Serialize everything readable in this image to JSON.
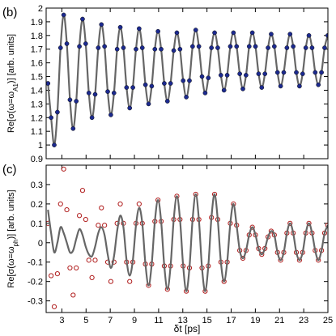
{
  "chart_data": [
    {
      "type": "scatter-line",
      "panel_label": "(b)",
      "ylabel": [
        "Re[σ(ω=ω",
        "A1",
        ")] [arb. units]"
      ],
      "xlim": [
        1.7,
        25
      ],
      "xticks": [
        3,
        5,
        7,
        9,
        11,
        13,
        15,
        17,
        19,
        21,
        23,
        25
      ],
      "show_xtick_labels": false,
      "ylim": [
        0.9,
        2
      ],
      "yticks": [
        0.9,
        1,
        1.1,
        1.2,
        1.3,
        1.4,
        1.5,
        1.6,
        1.7,
        1.8,
        1.9,
        2
      ],
      "series": [
        {
          "marker": "filled",
          "color": "#1c2a8f",
          "line_color": "#666666",
          "x": [
            1.85,
            2.11,
            2.37,
            2.63,
            2.89,
            3.15,
            3.41,
            3.67,
            3.93,
            4.19,
            4.45,
            4.71,
            4.97,
            5.23,
            5.49,
            5.75,
            6.01,
            6.27,
            6.53,
            6.79,
            7.05,
            7.31,
            7.57,
            7.83,
            8.09,
            8.35,
            8.61,
            8.87,
            9.13,
            9.39,
            9.65,
            9.91,
            10.17,
            10.43,
            10.69,
            10.95,
            11.21,
            11.47,
            11.73,
            11.99,
            12.25,
            12.51,
            12.77,
            13.03,
            13.29,
            13.55,
            13.81,
            14.07,
            14.33,
            14.59,
            14.85,
            15.11,
            15.37,
            15.63,
            15.89,
            16.15,
            16.41,
            16.67,
            16.93,
            17.19,
            17.45,
            17.71,
            17.97,
            18.23,
            18.49,
            18.75,
            19.01,
            19.27,
            19.53,
            19.79,
            20.05,
            20.31,
            20.57,
            20.83,
            21.09,
            21.35,
            21.61,
            21.87,
            22.13,
            22.39,
            22.65,
            22.91,
            23.17,
            23.43,
            23.69,
            23.95,
            24.21,
            24.47,
            24.73,
            24.99
          ],
          "values": [
            1.45,
            1.2,
            1.0,
            1.24,
            1.71,
            1.95,
            1.74,
            1.33,
            1.12,
            1.32,
            1.72,
            1.92,
            1.74,
            1.38,
            1.2,
            1.37,
            1.71,
            1.88,
            1.72,
            1.39,
            1.22,
            1.38,
            1.7,
            1.86,
            1.71,
            1.42,
            1.27,
            1.42,
            1.7,
            1.85,
            1.71,
            1.44,
            1.3,
            1.43,
            1.7,
            1.83,
            1.7,
            1.45,
            1.32,
            1.45,
            1.69,
            1.82,
            1.7,
            1.47,
            1.35,
            1.47,
            1.72,
            1.84,
            1.72,
            1.5,
            1.38,
            1.49,
            1.71,
            1.82,
            1.71,
            1.51,
            1.4,
            1.51,
            1.72,
            1.82,
            1.72,
            1.52,
            1.41,
            1.51,
            1.72,
            1.82,
            1.72,
            1.52,
            1.42,
            1.52,
            1.71,
            1.81,
            1.72,
            1.53,
            1.43,
            1.53,
            1.71,
            1.81,
            1.72,
            1.53,
            1.43,
            1.52,
            1.71,
            1.8,
            1.71,
            1.53,
            1.44,
            1.53,
            1.71,
            1.8
          ]
        }
      ]
    },
    {
      "type": "scatter-line",
      "panel_label": "(c)",
      "ylabel": [
        "Re[σ(ω=ω",
        "ph",
        ")] [arb. units]"
      ],
      "xlabel": "δt [ps]",
      "xlim": [
        1.7,
        25
      ],
      "xticks": [
        3,
        5,
        7,
        9,
        11,
        13,
        15,
        17,
        19,
        21,
        23,
        25
      ],
      "show_xtick_labels": true,
      "ylim": [
        -0.36,
        0.4
      ],
      "yticks": [
        -0.3,
        -0.2,
        -0.1,
        0,
        0.1,
        0.2,
        0.3
      ],
      "series": [
        {
          "marker": "open",
          "color": "#b01c1c",
          "x": [
            1.85,
            2.11,
            2.37,
            2.63,
            2.89,
            3.15,
            3.41,
            3.67,
            3.93,
            4.19,
            4.45,
            4.71,
            4.97,
            5.23,
            5.49,
            5.75,
            6.01,
            6.27,
            6.53,
            6.79,
            7.05,
            7.31,
            7.57,
            7.83,
            8.09,
            8.35,
            8.61,
            8.87,
            9.13,
            9.39,
            9.65,
            9.91,
            10.17,
            10.43,
            10.69,
            10.95,
            11.21,
            11.47,
            11.73,
            11.99,
            12.25,
            12.51,
            12.77,
            13.03,
            13.29,
            13.55,
            13.81,
            14.07,
            14.33,
            14.59,
            14.85,
            15.11,
            15.37,
            15.63,
            15.89,
            16.15,
            16.41,
            16.67,
            16.93,
            17.19,
            17.45,
            17.71,
            17.97,
            18.23,
            18.49,
            18.75,
            19.01,
            19.27,
            19.53,
            19.79,
            20.05,
            20.31,
            20.57,
            20.83,
            21.09,
            21.35,
            21.61,
            21.87,
            22.13,
            22.39,
            22.65,
            22.91,
            23.17,
            23.43,
            23.69,
            23.95,
            24.21,
            24.47,
            24.73,
            24.99
          ],
          "values": [
            0.1,
            -0.17,
            -0.33,
            -0.16,
            0.2,
            0.38,
            0.17,
            -0.13,
            -0.27,
            -0.13,
            0.14,
            0.27,
            0.12,
            -0.09,
            -0.18,
            -0.09,
            0.09,
            0.18,
            0.09,
            -0.1,
            -0.2,
            -0.1,
            0.1,
            0.2,
            0.1,
            -0.1,
            -0.2,
            -0.1,
            0.1,
            0.2,
            0.1,
            -0.11,
            -0.22,
            -0.11,
            0.11,
            0.22,
            0.11,
            -0.12,
            -0.24,
            -0.12,
            0.12,
            0.24,
            0.12,
            -0.12,
            -0.25,
            -0.13,
            0.12,
            0.25,
            0.12,
            -0.13,
            -0.25,
            -0.12,
            0.13,
            0.25,
            0.12,
            -0.1,
            -0.2,
            -0.1,
            0.1,
            0.2,
            0.09,
            -0.04,
            -0.08,
            -0.04,
            0.04,
            0.08,
            0.04,
            -0.03,
            -0.06,
            -0.03,
            0.03,
            0.06,
            0.04,
            -0.05,
            -0.09,
            -0.05,
            0.05,
            0.1,
            0.05,
            -0.05,
            -0.09,
            -0.05,
            0.05,
            0.1,
            0.05,
            -0.04,
            -0.09,
            -0.04,
            0.05,
            0.09
          ]
        },
        {
          "marker": "none",
          "line_color": "#666666",
          "x": [
            1.85,
            2.11,
            2.37,
            2.63,
            2.89,
            3.15,
            3.41,
            3.67,
            3.93,
            4.19,
            4.45,
            4.71,
            4.97,
            5.23,
            5.49,
            5.75,
            6.01,
            6.27,
            6.53,
            6.79,
            7.05,
            7.31,
            7.57,
            7.83,
            8.09,
            8.35,
            8.61,
            8.87,
            9.13,
            9.39,
            9.65,
            9.91,
            10.17,
            10.43,
            10.69,
            10.95,
            11.21,
            11.47,
            11.73,
            11.99,
            12.25,
            12.51,
            12.77,
            13.03,
            13.29,
            13.55,
            13.81,
            14.07,
            14.33,
            14.59,
            14.85,
            15.11,
            15.37,
            15.63,
            15.89,
            16.15,
            16.41,
            16.67,
            16.93,
            17.19,
            17.45,
            17.71,
            17.97,
            18.23,
            18.49,
            18.75,
            19.01,
            19.27,
            19.53,
            19.79,
            20.05,
            20.31,
            20.57,
            20.83,
            21.09,
            21.35,
            21.61,
            21.87,
            22.13,
            22.39,
            22.65,
            22.91,
            23.17,
            23.43,
            23.69,
            23.95,
            24.21,
            24.47,
            24.73,
            24.99
          ],
          "values": [
            0.17,
            0.05,
            -0.05,
            0.0,
            0.08,
            0.05,
            0.0,
            -0.05,
            -0.04,
            0.02,
            0.07,
            0.04,
            -0.02,
            -0.06,
            -0.07,
            -0.02,
            0.05,
            0.08,
            0.04,
            -0.06,
            -0.13,
            -0.07,
            0.06,
            0.14,
            0.08,
            -0.09,
            -0.17,
            -0.09,
            0.09,
            0.18,
            0.1,
            -0.11,
            -0.22,
            -0.11,
            0.11,
            0.22,
            0.11,
            -0.12,
            -0.24,
            -0.12,
            0.12,
            0.24,
            0.12,
            -0.12,
            -0.25,
            -0.13,
            0.12,
            0.25,
            0.12,
            -0.13,
            -0.25,
            -0.12,
            0.13,
            0.25,
            0.12,
            -0.1,
            -0.2,
            -0.1,
            0.1,
            0.2,
            0.09,
            -0.04,
            -0.08,
            -0.04,
            0.04,
            0.08,
            0.04,
            -0.03,
            -0.06,
            -0.03,
            0.03,
            0.06,
            0.04,
            -0.05,
            -0.09,
            -0.05,
            0.05,
            0.1,
            0.05,
            -0.05,
            -0.09,
            -0.05,
            0.05,
            0.1,
            0.05,
            -0.04,
            -0.09,
            -0.04,
            0.05,
            0.09
          ]
        }
      ]
    }
  ]
}
